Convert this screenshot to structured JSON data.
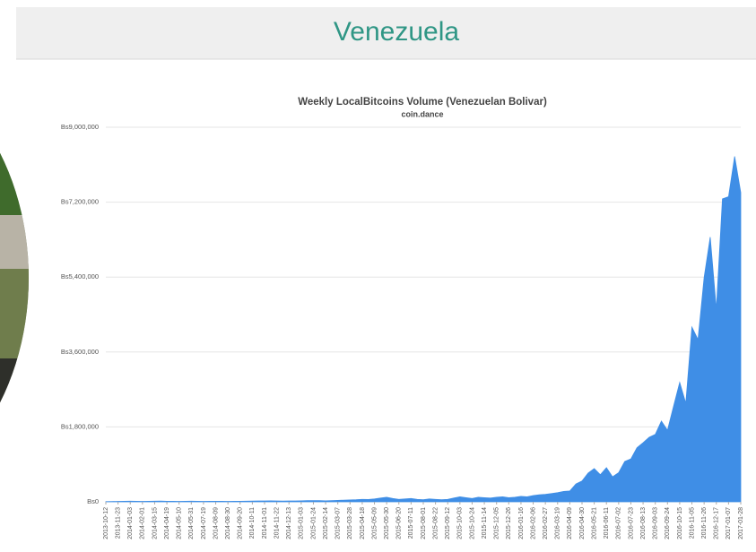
{
  "header": {
    "title": "Venezuela"
  },
  "chart_data": {
    "type": "area",
    "title": "Weekly LocalBitcoins Volume (Venezuelan Bolivar)",
    "subtitle": "coin.dance",
    "color": "#3f8ee6",
    "grid": true,
    "ylim": [
      0,
      9000000
    ],
    "yticks": [
      {
        "value": 0,
        "label": "Bs0"
      },
      {
        "value": 1800000,
        "label": "Bs1,800,000"
      },
      {
        "value": 3600000,
        "label": "Bs3,600,000"
      },
      {
        "value": 5400000,
        "label": "Bs5,400,000"
      },
      {
        "value": 7200000,
        "label": "Bs7,200,000"
      },
      {
        "value": 9000000,
        "label": "Bs9,000,000"
      }
    ],
    "categories": [
      "2013-10-12",
      null,
      "2013-11-23",
      null,
      "2014-01-03",
      null,
      "2014-02-01",
      null,
      "2014-03-15",
      null,
      "2014-04-19",
      null,
      "2014-05-10",
      null,
      "2014-05-31",
      null,
      "2014-07-19",
      null,
      "2014-08-09",
      null,
      "2014-08-30",
      null,
      "2014-09-20",
      null,
      "2014-10-11",
      null,
      "2014-11-01",
      null,
      "2014-11-22",
      null,
      "2014-12-13",
      null,
      "2015-01-03",
      null,
      "2015-01-24",
      null,
      "2015-02-14",
      null,
      "2015-03-07",
      null,
      "2015-03-28",
      null,
      "2015-04-18",
      null,
      "2015-05-09",
      null,
      "2015-05-30",
      null,
      "2015-06-20",
      null,
      "2015-07-11",
      null,
      "2015-08-01",
      null,
      "2015-08-22",
      null,
      "2015-09-12",
      null,
      "2015-10-03",
      null,
      "2015-10-24",
      null,
      "2015-11-14",
      null,
      "2015-12-05",
      null,
      "2015-12-26",
      null,
      "2016-01-16",
      null,
      "2016-02-06",
      null,
      "2016-02-27",
      null,
      "2016-03-19",
      null,
      "2016-04-09",
      null,
      "2016-04-30",
      null,
      "2016-05-21",
      null,
      "2016-06-11",
      null,
      "2016-07-02",
      null,
      "2016-07-23",
      null,
      "2016-08-13",
      null,
      "2016-09-03",
      null,
      "2016-09-24",
      null,
      "2016-10-15",
      null,
      "2016-11-05",
      null,
      "2016-11-26",
      null,
      "2016-12-17",
      null,
      "2017-01-07",
      null,
      "2017-01-28"
    ],
    "values": [
      5000,
      8000,
      10000,
      12000,
      15000,
      12000,
      10000,
      12000,
      15000,
      18000,
      14000,
      12000,
      10000,
      12000,
      15000,
      12000,
      10000,
      12000,
      14000,
      12000,
      10000,
      12000,
      14000,
      16000,
      18000,
      20000,
      22000,
      25000,
      20000,
      18000,
      20000,
      22000,
      25000,
      28000,
      30000,
      28000,
      25000,
      30000,
      35000,
      40000,
      45000,
      50000,
      60000,
      55000,
      70000,
      90000,
      110000,
      80000,
      60000,
      70000,
      80000,
      60000,
      50000,
      70000,
      60000,
      50000,
      60000,
      90000,
      120000,
      100000,
      80000,
      110000,
      100000,
      90000,
      110000,
      120000,
      100000,
      110000,
      130000,
      120000,
      150000,
      170000,
      180000,
      200000,
      220000,
      250000,
      260000,
      430000,
      500000,
      690000,
      800000,
      650000,
      820000,
      600000,
      700000,
      970000,
      1030000,
      1300000,
      1420000,
      1550000,
      1620000,
      1940000,
      1720000,
      2300000,
      2870000,
      2370000,
      4200000,
      3900000,
      5390000,
      6360000,
      4630000,
      7280000,
      7330000,
      8300000,
      7430000
    ]
  }
}
